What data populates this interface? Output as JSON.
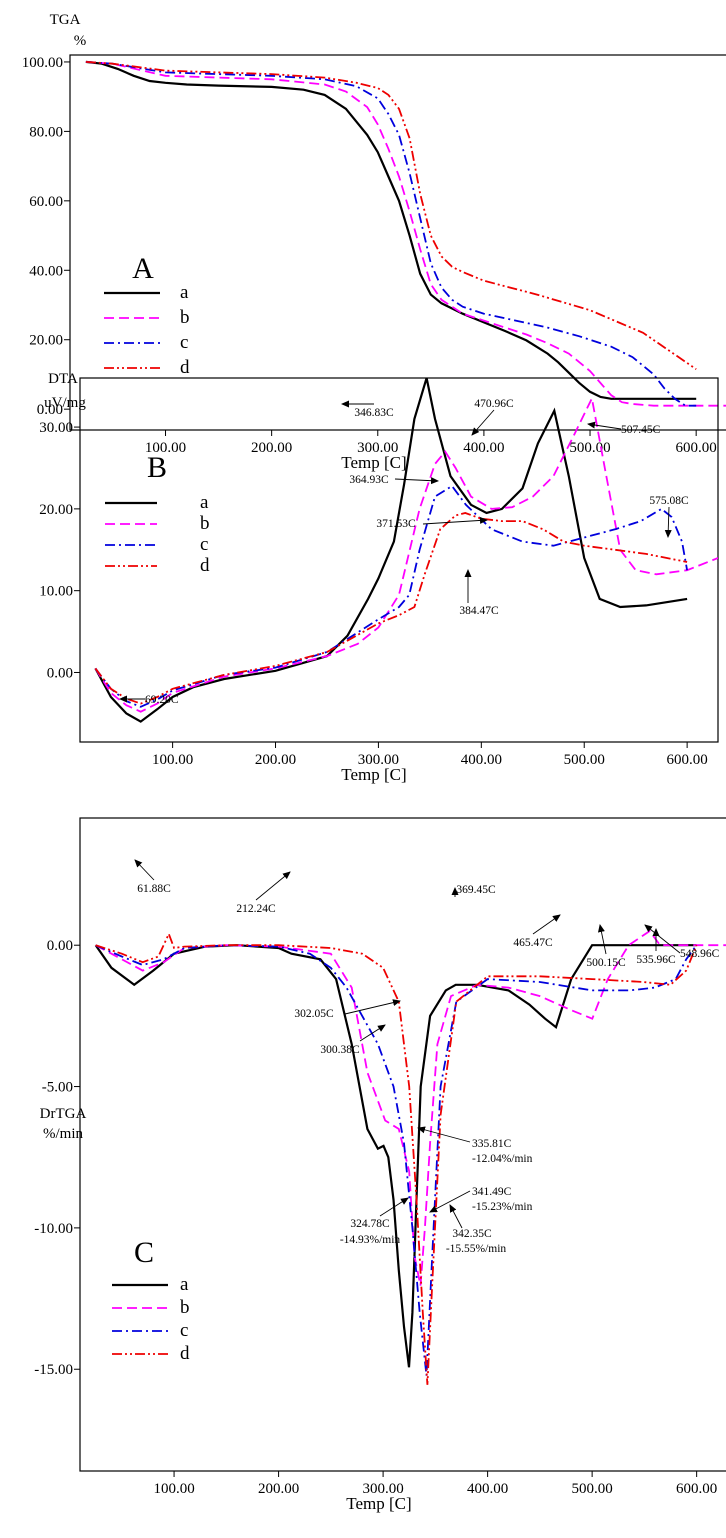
{
  "colors": {
    "a": "#000000",
    "b": "#ff00ff",
    "c": "#0000dd",
    "d": "#ee0000"
  },
  "chart_data": [
    {
      "type": "line",
      "panel_label": "A",
      "ylabel_line1": "TGA",
      "ylabel_line2": "%",
      "xlabel": "Temp  [C]",
      "xlim": [
        10,
        630
      ],
      "ylim": [
        -6,
        102
      ],
      "xticks": [
        100,
        200,
        300,
        400,
        500,
        600
      ],
      "xtick_labels": [
        "100.00",
        "200.00",
        "300.00",
        "400.00",
        "500.00",
        "600.00"
      ],
      "yticks": [
        0,
        20,
        40,
        60,
        80,
        100
      ],
      "ytick_labels": [
        "0.00",
        "20.00",
        "40.00",
        "60.00",
        "80.00",
        "100.00"
      ],
      "legend_position": "left",
      "series": [
        {
          "name": "a",
          "style": "solid",
          "x": [
            25,
            40,
            55,
            70,
            85,
            100,
            120,
            150,
            200,
            230,
            250,
            270,
            290,
            300,
            310,
            320,
            330,
            340,
            350,
            360,
            370,
            380,
            400,
            420,
            440,
            460,
            470,
            480,
            490,
            500,
            510,
            520,
            540,
            560,
            580,
            600
          ],
          "y": [
            100,
            99.5,
            98,
            96,
            94.5,
            94,
            93.5,
            93.2,
            92.8,
            92,
            90.5,
            86.5,
            79,
            74,
            67,
            60,
            50,
            39,
            33,
            30.5,
            29,
            27.5,
            25,
            22.5,
            19.8,
            16,
            13.5,
            10.5,
            7.5,
            5,
            3.5,
            3,
            3,
            3,
            3,
            3
          ]
        },
        {
          "name": "b",
          "style": "dashed",
          "x": [
            25,
            50,
            100,
            150,
            200,
            250,
            270,
            290,
            300,
            310,
            320,
            330,
            340,
            350,
            360,
            370,
            380,
            400,
            420,
            440,
            460,
            480,
            500,
            510,
            520,
            530,
            540,
            560,
            600,
            630
          ],
          "y": [
            100,
            99.5,
            96,
            95.5,
            95,
            93.5,
            91.5,
            87,
            82,
            75,
            67,
            57,
            46,
            36,
            31.5,
            29.5,
            27.5,
            25.5,
            23.5,
            21.5,
            19,
            16,
            11,
            7.5,
            4,
            2,
            1.5,
            1,
            1,
            1
          ]
        },
        {
          "name": "c",
          "style": "dashdot",
          "x": [
            25,
            50,
            100,
            150,
            200,
            250,
            280,
            300,
            310,
            320,
            330,
            340,
            350,
            360,
            370,
            380,
            400,
            430,
            460,
            490,
            520,
            540,
            560,
            570,
            580,
            590,
            600
          ],
          "y": [
            100,
            99.5,
            97,
            96.5,
            96,
            95,
            93,
            89.5,
            85,
            79,
            68,
            55,
            42,
            35,
            31.5,
            29.5,
            27.5,
            25.5,
            23.5,
            21,
            18,
            15,
            10,
            6,
            3,
            1,
            1
          ]
        },
        {
          "name": "d",
          "style": "dashdotdot",
          "x": [
            25,
            50,
            100,
            150,
            200,
            250,
            280,
            300,
            310,
            320,
            330,
            340,
            350,
            360,
            370,
            380,
            400,
            450,
            500,
            550,
            600
          ],
          "y": [
            100,
            99.5,
            97.5,
            97,
            96.5,
            95.5,
            94,
            92.5,
            90.5,
            86.5,
            78,
            62,
            50,
            44,
            41,
            39.5,
            37,
            33,
            28.5,
            22,
            11.5
          ]
        }
      ]
    },
    {
      "type": "line",
      "panel_label": "B",
      "ylabel_line1": "DTA",
      "ylabel_line2": "uV/mg",
      "xlabel": "Temp  [C]",
      "xlim": [
        10,
        630
      ],
      "ylim": [
        -8.5,
        36
      ],
      "xticks": [
        100,
        200,
        300,
        400,
        500,
        600
      ],
      "xtick_labels": [
        "100.00",
        "200.00",
        "300.00",
        "400.00",
        "500.00",
        "600.00"
      ],
      "yticks": [
        0,
        10,
        20,
        30
      ],
      "ytick_labels": [
        "0.00",
        "10.00",
        "20.00",
        "30.00"
      ],
      "legend_position": "top-left",
      "series": [
        {
          "name": "a",
          "style": "solid",
          "x": [
            25,
            40,
            55,
            69,
            85,
            100,
            120,
            150,
            200,
            250,
            270,
            290,
            300,
            315,
            325,
            335,
            346.8,
            355,
            370,
            390,
            405,
            420,
            440,
            455,
            470.96,
            485,
            500,
            515,
            535,
            560,
            600
          ],
          "y": [
            0.5,
            -3,
            -5,
            -6,
            -4.5,
            -3,
            -1.8,
            -0.8,
            0.2,
            2,
            4.5,
            9,
            11.5,
            16,
            23,
            31,
            36,
            31,
            24,
            20.5,
            19.5,
            20,
            22.5,
            28,
            32,
            24,
            14,
            9,
            8,
            8.2,
            9
          ]
        },
        {
          "name": "b",
          "style": "dashed",
          "x": [
            25,
            40,
            55,
            69,
            85,
            100,
            150,
            200,
            250,
            280,
            300,
            320,
            340,
            355,
            364.93,
            375,
            390,
            410,
            430,
            450,
            470,
            490,
            507.45,
            520,
            535,
            550,
            570,
            600,
            630
          ],
          "y": [
            0.5,
            -2.5,
            -4,
            -4.8,
            -3.8,
            -2.5,
            -0.5,
            0.5,
            2,
            3.5,
            5.5,
            9.5,
            20,
            25.5,
            27,
            25,
            21.5,
            20,
            20.2,
            21.5,
            24,
            29,
            33.5,
            25,
            15,
            12.5,
            12,
            12.5,
            14
          ]
        },
        {
          "name": "c",
          "style": "dashdot",
          "x": [
            25,
            40,
            55,
            69,
            85,
            100,
            150,
            200,
            250,
            300,
            320,
            330,
            340,
            355,
            371.53,
            385,
            410,
            440,
            470,
            500,
            530,
            555,
            575.08,
            585,
            595,
            600
          ],
          "y": [
            0.5,
            -2,
            -3.5,
            -4.2,
            -3.3,
            -2.2,
            -0.3,
            0.6,
            2.5,
            6.5,
            8,
            9.5,
            15,
            21.5,
            22.8,
            20.5,
            17.5,
            16,
            15.5,
            16.5,
            17.5,
            18.5,
            20,
            19,
            16,
            12.5
          ]
        },
        {
          "name": "d",
          "style": "dashdotdot",
          "x": [
            25,
            40,
            55,
            69,
            85,
            100,
            150,
            200,
            250,
            300,
            320,
            335,
            345,
            360,
            375,
            384.47,
            400,
            420,
            440,
            460,
            480,
            500,
            530,
            560,
            600
          ],
          "y": [
            0.5,
            -2,
            -3.2,
            -3.8,
            -3,
            -2,
            -0.3,
            0.8,
            2.5,
            6,
            7,
            8,
            12,
            17.5,
            19.2,
            19.5,
            18.8,
            18.5,
            18.5,
            17.5,
            16,
            15.5,
            15,
            14.5,
            13.5
          ]
        }
      ],
      "annotations": [
        {
          "text": "346.83C"
        },
        {
          "text": "470.96C"
        },
        {
          "text": "507.45C"
        },
        {
          "text": "364.93C"
        },
        {
          "text": "575.08C"
        },
        {
          "text": "371.53C"
        },
        {
          "text": "384.47C"
        },
        {
          "text": "69.20C"
        }
      ]
    },
    {
      "type": "line",
      "panel_label": "C",
      "ylabel_line1": "DrTGA",
      "ylabel_line2": "%/min",
      "xlabel": "Temp  [C]",
      "xlim": [
        10,
        630
      ],
      "ylim": [
        -18.6,
        4.5
      ],
      "xticks": [
        100,
        200,
        300,
        400,
        500,
        600
      ],
      "xtick_labels": [
        "100.00",
        "200.00",
        "300.00",
        "400.00",
        "500.00",
        "600.00"
      ],
      "yticks": [
        0,
        -5,
        -10,
        -15
      ],
      "ytick_labels": [
        "0.00",
        "-5.00",
        "-10.00",
        "-15.00"
      ],
      "legend_position": "bottom-left",
      "series": [
        {
          "name": "a",
          "style": "solid",
          "x": [
            25,
            40,
            61.88,
            80,
            100,
            130,
            160,
            200,
            212.24,
            240,
            255,
            270,
            285,
            295,
            300.38,
            305,
            310,
            315,
            320,
            324.78,
            328,
            332,
            336,
            345,
            360,
            369.45,
            390,
            420,
            440,
            455,
            465.47,
            480,
            500,
            530,
            600
          ],
          "y": [
            0,
            -0.8,
            -1.4,
            -0.9,
            -0.3,
            -0.05,
            0,
            -0.1,
            -0.3,
            -0.5,
            -1.2,
            -3.5,
            -6.5,
            -7.2,
            -7.1,
            -7.5,
            -9,
            -11.5,
            -13.5,
            -14.93,
            -13,
            -9,
            -5,
            -2.5,
            -1.6,
            -1.4,
            -1.4,
            -1.6,
            -2.1,
            -2.6,
            -2.9,
            -1.2,
            0,
            0,
            0
          ]
        },
        {
          "name": "b",
          "style": "dashed",
          "x": [
            25,
            50,
            70,
            90,
            110,
            150,
            200,
            250,
            270,
            285,
            302.05,
            315,
            325,
            330,
            335.81,
            340,
            345,
            352,
            365,
            390,
            420,
            450,
            480,
            500.15,
            515,
            535,
            555,
            565,
            580,
            600,
            630
          ],
          "y": [
            0,
            -0.5,
            -0.9,
            -0.6,
            -0.1,
            0,
            -0.05,
            -0.3,
            -1.5,
            -4.5,
            -6.2,
            -6.5,
            -8,
            -11,
            -12.04,
            -10,
            -7,
            -3.5,
            -1.8,
            -1.4,
            -1.5,
            -1.8,
            -2.3,
            -2.6,
            -1.2,
            0,
            0.5,
            0,
            0,
            0,
            0
          ]
        },
        {
          "name": "c",
          "style": "dashdot",
          "x": [
            25,
            50,
            70,
            90,
            110,
            150,
            200,
            230,
            250,
            265,
            280,
            295,
            310,
            320,
            328,
            335,
            341.49,
            347,
            355,
            370,
            400,
            450,
            500,
            535.96,
            560,
            580,
            590,
            600
          ],
          "y": [
            0,
            -0.4,
            -0.7,
            -0.5,
            -0.1,
            0,
            -0.05,
            -0.3,
            -0.8,
            -1.5,
            -2.5,
            -3.5,
            -5,
            -7,
            -10,
            -13,
            -15.23,
            -11,
            -5,
            -2,
            -1.2,
            -1.3,
            -1.6,
            -1.6,
            -1.5,
            -1.2,
            -0.5,
            0
          ]
        },
        {
          "name": "d",
          "style": "dashdotdot",
          "x": [
            25,
            50,
            70,
            85,
            95,
            100,
            110,
            150,
            200,
            250,
            280,
            300,
            315,
            325,
            332,
            338,
            342.35,
            347,
            355,
            370,
            400,
            450,
            500,
            548.96,
            575,
            590,
            600
          ],
          "y": [
            0,
            -0.3,
            -0.6,
            -0.4,
            0.4,
            -0.1,
            -0.05,
            0,
            0,
            -0.1,
            -0.3,
            -0.8,
            -2,
            -5,
            -9,
            -13,
            -15.55,
            -12,
            -6,
            -2,
            -1.1,
            -1.1,
            -1.2,
            -1.3,
            -1.4,
            -0.9,
            0
          ]
        }
      ],
      "annotations": [
        {
          "text": "61.88C"
        },
        {
          "text": "212.24C"
        },
        {
          "text": "369.45C"
        },
        {
          "text": "465.47C"
        },
        {
          "text": "500.15C"
        },
        {
          "text": "535.96C"
        },
        {
          "text": "548.96C"
        },
        {
          "text": "302.05C"
        },
        {
          "text": "300.38C"
        },
        {
          "text": "335.81C"
        },
        {
          "text": "-12.04%/min"
        },
        {
          "text": "341.49C"
        },
        {
          "text": "-15.23%/min"
        },
        {
          "text": "324.78C"
        },
        {
          "text": "-14.93%/min"
        },
        {
          "text": "342.35C"
        },
        {
          "text": "-15.55%/min"
        }
      ]
    }
  ]
}
